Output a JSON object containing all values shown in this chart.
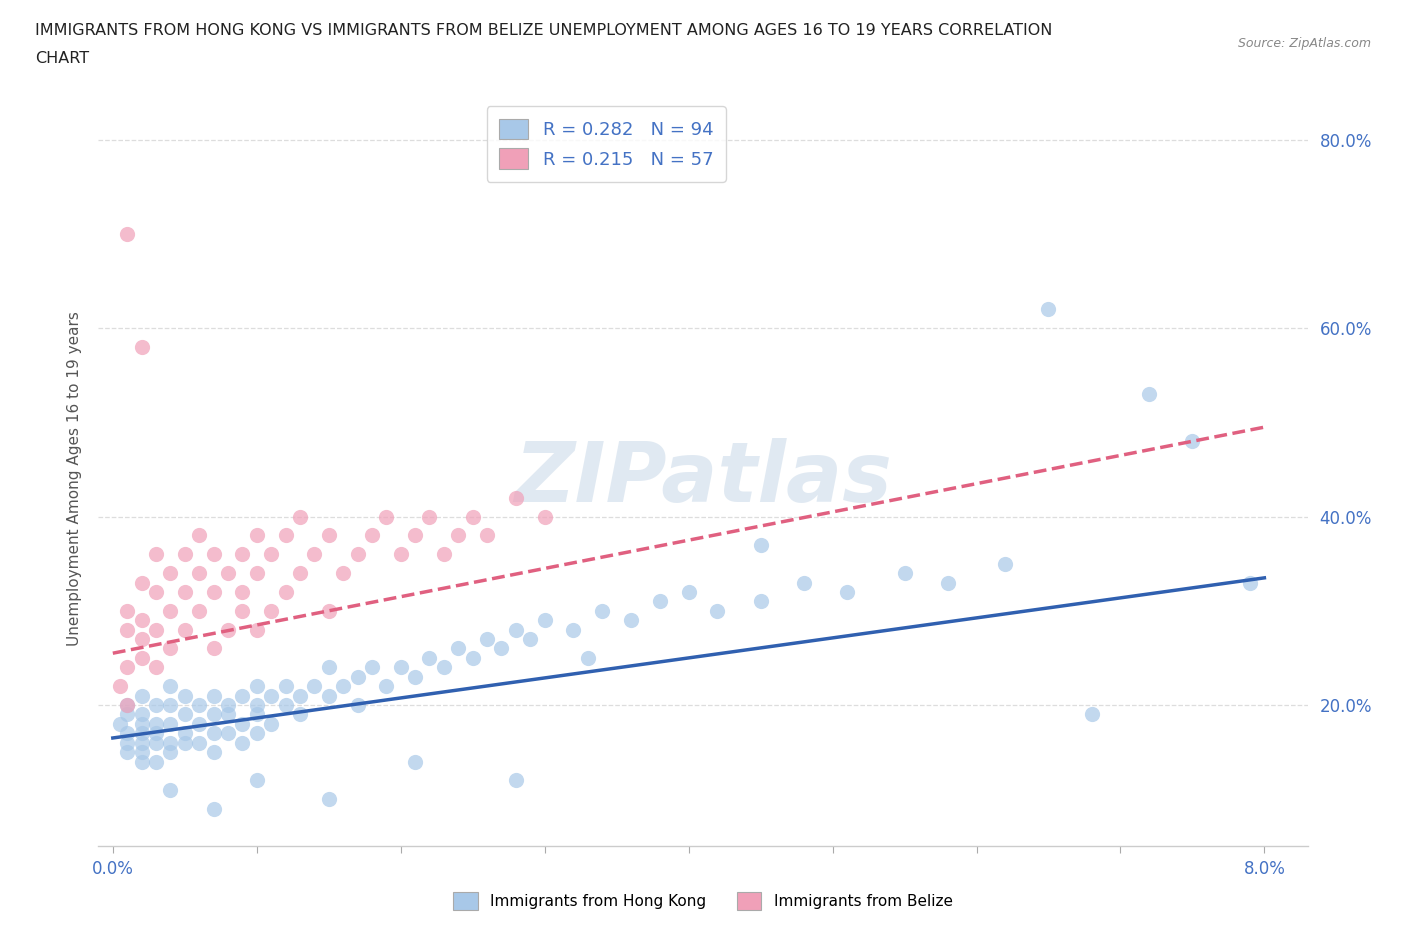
{
  "title_line1": "IMMIGRANTS FROM HONG KONG VS IMMIGRANTS FROM BELIZE UNEMPLOYMENT AMONG AGES 16 TO 19 YEARS CORRELATION",
  "title_line2": "CHART",
  "source": "Source: ZipAtlas.com",
  "ylabel": "Unemployment Among Ages 16 to 19 years",
  "xlim": [
    -0.001,
    0.083
  ],
  "ylim": [
    0.05,
    0.83
  ],
  "xtick_positions": [
    0.0,
    0.01,
    0.02,
    0.03,
    0.04,
    0.05,
    0.06,
    0.07,
    0.08
  ],
  "xticklabels": [
    "0.0%",
    "",
    "",
    "",
    "",
    "",
    "",
    "",
    "8.0%"
  ],
  "ytick_positions": [
    0.2,
    0.4,
    0.6,
    0.8
  ],
  "ytick_labels": [
    "20.0%",
    "40.0%",
    "60.0%",
    "80.0%"
  ],
  "hk_color": "#a8c8e8",
  "belize_color": "#f0a0b8",
  "hk_line_color": "#3060b0",
  "belize_line_color": "#e06080",
  "hk_R": 0.282,
  "hk_N": 94,
  "belize_R": 0.215,
  "belize_N": 57,
  "watermark": "ZIPatlas",
  "background_color": "#ffffff",
  "grid_color": "#dddddd",
  "hk_x": [
    0.0005,
    0.001,
    0.001,
    0.001,
    0.001,
    0.001,
    0.002,
    0.002,
    0.002,
    0.002,
    0.002,
    0.002,
    0.002,
    0.003,
    0.003,
    0.003,
    0.003,
    0.003,
    0.004,
    0.004,
    0.004,
    0.004,
    0.004,
    0.005,
    0.005,
    0.005,
    0.005,
    0.006,
    0.006,
    0.006,
    0.007,
    0.007,
    0.007,
    0.007,
    0.008,
    0.008,
    0.008,
    0.009,
    0.009,
    0.009,
    0.01,
    0.01,
    0.01,
    0.01,
    0.011,
    0.011,
    0.012,
    0.012,
    0.013,
    0.013,
    0.014,
    0.015,
    0.015,
    0.016,
    0.017,
    0.017,
    0.018,
    0.019,
    0.02,
    0.021,
    0.022,
    0.023,
    0.024,
    0.025,
    0.026,
    0.027,
    0.028,
    0.029,
    0.03,
    0.032,
    0.034,
    0.036,
    0.038,
    0.04,
    0.042,
    0.045,
    0.048,
    0.051,
    0.055,
    0.058,
    0.062,
    0.065,
    0.068,
    0.072,
    0.075,
    0.079,
    0.045,
    0.033,
    0.028,
    0.021,
    0.015,
    0.01,
    0.007,
    0.004
  ],
  "hk_y": [
    0.18,
    0.15,
    0.17,
    0.19,
    0.16,
    0.2,
    0.14,
    0.16,
    0.18,
    0.17,
    0.15,
    0.19,
    0.21,
    0.16,
    0.18,
    0.14,
    0.2,
    0.17,
    0.15,
    0.18,
    0.16,
    0.2,
    0.22,
    0.16,
    0.19,
    0.17,
    0.21,
    0.16,
    0.2,
    0.18,
    0.17,
    0.19,
    0.21,
    0.15,
    0.17,
    0.2,
    0.19,
    0.18,
    0.21,
    0.16,
    0.19,
    0.22,
    0.17,
    0.2,
    0.21,
    0.18,
    0.2,
    0.22,
    0.21,
    0.19,
    0.22,
    0.21,
    0.24,
    0.22,
    0.23,
    0.2,
    0.24,
    0.22,
    0.24,
    0.23,
    0.25,
    0.24,
    0.26,
    0.25,
    0.27,
    0.26,
    0.28,
    0.27,
    0.29,
    0.28,
    0.3,
    0.29,
    0.31,
    0.32,
    0.3,
    0.31,
    0.33,
    0.32,
    0.34,
    0.33,
    0.35,
    0.62,
    0.19,
    0.53,
    0.48,
    0.33,
    0.37,
    0.25,
    0.12,
    0.14,
    0.1,
    0.12,
    0.09,
    0.11
  ],
  "belize_x": [
    0.0005,
    0.001,
    0.001,
    0.001,
    0.001,
    0.002,
    0.002,
    0.002,
    0.002,
    0.003,
    0.003,
    0.003,
    0.003,
    0.004,
    0.004,
    0.004,
    0.005,
    0.005,
    0.005,
    0.006,
    0.006,
    0.006,
    0.007,
    0.007,
    0.007,
    0.008,
    0.008,
    0.009,
    0.009,
    0.009,
    0.01,
    0.01,
    0.01,
    0.011,
    0.011,
    0.012,
    0.012,
    0.013,
    0.013,
    0.014,
    0.015,
    0.015,
    0.016,
    0.017,
    0.018,
    0.019,
    0.02,
    0.021,
    0.022,
    0.023,
    0.024,
    0.025,
    0.026,
    0.028,
    0.03,
    0.001,
    0.002
  ],
  "belize_y": [
    0.22,
    0.2,
    0.24,
    0.28,
    0.3,
    0.25,
    0.29,
    0.33,
    0.27,
    0.28,
    0.32,
    0.36,
    0.24,
    0.3,
    0.34,
    0.26,
    0.28,
    0.32,
    0.36,
    0.3,
    0.34,
    0.38,
    0.26,
    0.32,
    0.36,
    0.28,
    0.34,
    0.3,
    0.36,
    0.32,
    0.28,
    0.34,
    0.38,
    0.3,
    0.36,
    0.32,
    0.38,
    0.34,
    0.4,
    0.36,
    0.3,
    0.38,
    0.34,
    0.36,
    0.38,
    0.4,
    0.36,
    0.38,
    0.4,
    0.36,
    0.38,
    0.4,
    0.38,
    0.42,
    0.4,
    0.7,
    0.58
  ],
  "hk_trend_x0": 0.0,
  "hk_trend_y0": 0.165,
  "hk_trend_x1": 0.08,
  "hk_trend_y1": 0.335,
  "belize_trend_x0": 0.0,
  "belize_trend_y0": 0.255,
  "belize_trend_x1": 0.08,
  "belize_trend_y1": 0.495
}
